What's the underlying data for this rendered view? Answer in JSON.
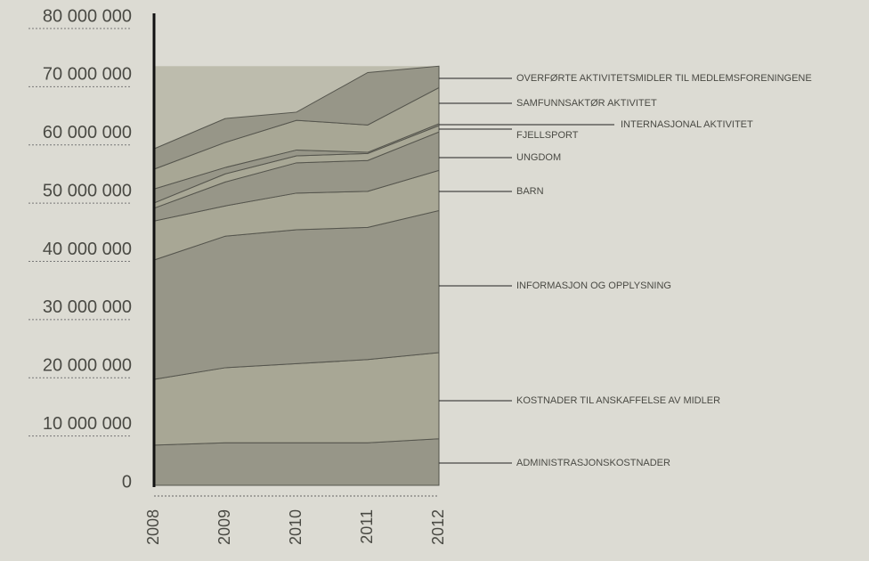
{
  "chart_data": {
    "type": "stacked_area",
    "categories": [
      "2008",
      "2009",
      "2010",
      "2011",
      "2012"
    ],
    "series": [
      {
        "name": "ADMINISTRASJONSKOSTNADER",
        "color": "#979688",
        "values": [
          6900000,
          7300000,
          7300000,
          7300000,
          8000000
        ]
      },
      {
        "name": "KOSTNADER TIL ANSKAFFELSE AV MIDLER",
        "color": "#a8a795",
        "values": [
          11300000,
          12900000,
          13600000,
          14300000,
          14800000
        ]
      },
      {
        "name": "INFORMASJON OG OPPLYSNING",
        "color": "#979688",
        "values": [
          20500000,
          22600000,
          23000000,
          22700000,
          24400000
        ]
      },
      {
        "name": "BARN",
        "color": "#a8a795",
        "values": [
          6700000,
          5200000,
          6300000,
          6200000,
          6900000
        ]
      },
      {
        "name": "UNGDOM",
        "color": "#979688",
        "values": [
          2200000,
          4100000,
          5200000,
          5300000,
          6600000
        ]
      },
      {
        "name": "FJELLSPORT",
        "color": "#a8a795",
        "values": [
          900000,
          1400000,
          1200000,
          1200000,
          1100000
        ]
      },
      {
        "name": "INTERNASJONAL AKTIVITET",
        "color": "#979688",
        "values": [
          2400000,
          1100000,
          1000000,
          200000,
          300000
        ]
      },
      {
        "name": "SAMFUNNSAKTØR AKTIVITET",
        "color": "#a8a795",
        "values": [
          3400000,
          4300000,
          5100000,
          4700000,
          6200000
        ]
      },
      {
        "name": "OVERFØRTE AKTIVITETSMIDLER TIL MEDLEMSFORENINGENE",
        "color": "#979688",
        "values": [
          3500000,
          4100000,
          1400000,
          9000000,
          3700000
        ]
      }
    ],
    "ylim": [
      0,
      80000000
    ],
    "yticks": [
      0,
      {
        "value": 10000000,
        "label": "10 000 000"
      },
      {
        "value": 20000000,
        "label": "20 000 000"
      },
      {
        "value": 30000000,
        "label": "30 000 000"
      },
      {
        "value": 40000000,
        "label": "40 000 000"
      },
      {
        "value": 50000000,
        "label": "50 000 000"
      },
      {
        "value": 60000000,
        "label": "60 000 000"
      },
      {
        "value": 70000000,
        "label": "70 000 000"
      },
      {
        "value": 80000000,
        "label": "80 000 000"
      }
    ]
  }
}
